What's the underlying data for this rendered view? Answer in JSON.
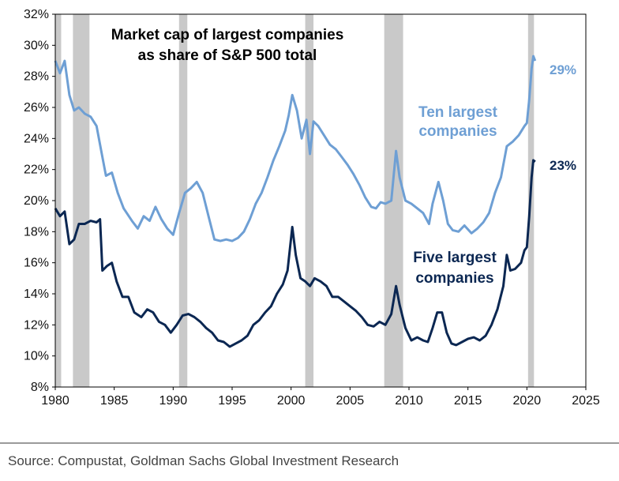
{
  "chart_data": {
    "type": "line",
    "title_lines": [
      "Market cap of largest companies",
      "as share of S&P 500 total"
    ],
    "xlim": [
      1980,
      2025
    ],
    "ylim": [
      8,
      32
    ],
    "x_ticks": [
      "1980",
      "1985",
      "1990",
      "1995",
      "2000",
      "2005",
      "2010",
      "2015",
      "2020",
      "2025"
    ],
    "y_ticks": [
      "8%",
      "10%",
      "12%",
      "14%",
      "16%",
      "18%",
      "20%",
      "22%",
      "24%",
      "26%",
      "28%",
      "30%",
      "32%"
    ],
    "recession_periods": [
      [
        1980.0,
        1980.5
      ],
      [
        1981.5,
        1982.9
      ],
      [
        1990.5,
        1991.2
      ],
      [
        2001.2,
        2001.9
      ],
      [
        2007.9,
        2009.5
      ],
      [
        2020.1,
        2020.6
      ]
    ],
    "series": [
      {
        "name": "Ten largest companies",
        "label_lines": [
          "Ten largest",
          "companies"
        ],
        "end_label": "29%",
        "color": "#6e9fd4",
        "points": [
          [
            1980.0,
            29.0
          ],
          [
            1980.4,
            28.2
          ],
          [
            1980.8,
            29.0
          ],
          [
            1981.2,
            26.8
          ],
          [
            1981.6,
            25.8
          ],
          [
            1982.0,
            26.0
          ],
          [
            1982.5,
            25.6
          ],
          [
            1983.0,
            25.4
          ],
          [
            1983.5,
            24.8
          ],
          [
            1984.0,
            22.8
          ],
          [
            1984.3,
            21.6
          ],
          [
            1984.8,
            21.8
          ],
          [
            1985.3,
            20.5
          ],
          [
            1985.8,
            19.5
          ],
          [
            1986.5,
            18.7
          ],
          [
            1987.0,
            18.2
          ],
          [
            1987.5,
            19.0
          ],
          [
            1988.0,
            18.7
          ],
          [
            1988.5,
            19.6
          ],
          [
            1989.0,
            18.8
          ],
          [
            1989.5,
            18.2
          ],
          [
            1990.0,
            17.8
          ],
          [
            1990.5,
            19.2
          ],
          [
            1991.0,
            20.5
          ],
          [
            1991.5,
            20.8
          ],
          [
            1992.0,
            21.2
          ],
          [
            1992.5,
            20.5
          ],
          [
            1993.0,
            19.0
          ],
          [
            1993.5,
            17.5
          ],
          [
            1994.0,
            17.4
          ],
          [
            1994.5,
            17.5
          ],
          [
            1995.0,
            17.4
          ],
          [
            1995.5,
            17.6
          ],
          [
            1996.0,
            18.0
          ],
          [
            1996.5,
            18.8
          ],
          [
            1997.0,
            19.8
          ],
          [
            1997.5,
            20.5
          ],
          [
            1998.0,
            21.5
          ],
          [
            1998.5,
            22.6
          ],
          [
            1999.0,
            23.5
          ],
          [
            1999.5,
            24.5
          ],
          [
            1999.8,
            25.5
          ],
          [
            2000.1,
            26.8
          ],
          [
            2000.5,
            25.8
          ],
          [
            2000.9,
            24.0
          ],
          [
            2001.3,
            25.2
          ],
          [
            2001.6,
            23.0
          ],
          [
            2001.9,
            25.1
          ],
          [
            2002.3,
            24.8
          ],
          [
            2002.8,
            24.2
          ],
          [
            2003.3,
            23.6
          ],
          [
            2003.8,
            23.3
          ],
          [
            2004.3,
            22.8
          ],
          [
            2004.8,
            22.3
          ],
          [
            2005.3,
            21.7
          ],
          [
            2005.8,
            21.0
          ],
          [
            2006.3,
            20.2
          ],
          [
            2006.8,
            19.6
          ],
          [
            2007.2,
            19.5
          ],
          [
            2007.6,
            19.9
          ],
          [
            2008.0,
            19.8
          ],
          [
            2008.5,
            20.0
          ],
          [
            2008.9,
            23.2
          ],
          [
            2009.2,
            21.5
          ],
          [
            2009.7,
            20.0
          ],
          [
            2010.2,
            19.8
          ],
          [
            2010.7,
            19.5
          ],
          [
            2011.2,
            19.2
          ],
          [
            2011.7,
            18.5
          ],
          [
            2012.0,
            19.8
          ],
          [
            2012.5,
            21.2
          ],
          [
            2012.9,
            20.0
          ],
          [
            2013.3,
            18.5
          ],
          [
            2013.7,
            18.1
          ],
          [
            2014.2,
            18.0
          ],
          [
            2014.7,
            18.4
          ],
          [
            2015.3,
            17.9
          ],
          [
            2015.8,
            18.2
          ],
          [
            2016.3,
            18.6
          ],
          [
            2016.8,
            19.2
          ],
          [
            2017.3,
            20.5
          ],
          [
            2017.8,
            21.5
          ],
          [
            2018.3,
            23.5
          ],
          [
            2018.8,
            23.8
          ],
          [
            2019.3,
            24.2
          ],
          [
            2019.8,
            24.8
          ],
          [
            2020.0,
            25.0
          ],
          [
            2020.2,
            26.5
          ],
          [
            2020.4,
            28.5
          ],
          [
            2020.55,
            29.3
          ],
          [
            2020.7,
            29.0
          ]
        ]
      },
      {
        "name": "Five largest companies",
        "label_lines": [
          "Five largest",
          "companies"
        ],
        "end_label": "23%",
        "color": "#0b2752",
        "points": [
          [
            1980.0,
            19.5
          ],
          [
            1980.4,
            19.0
          ],
          [
            1980.8,
            19.3
          ],
          [
            1981.2,
            17.2
          ],
          [
            1981.6,
            17.5
          ],
          [
            1982.0,
            18.5
          ],
          [
            1982.5,
            18.5
          ],
          [
            1983.0,
            18.7
          ],
          [
            1983.5,
            18.6
          ],
          [
            1983.8,
            18.8
          ],
          [
            1984.0,
            15.5
          ],
          [
            1984.4,
            15.8
          ],
          [
            1984.8,
            16.0
          ],
          [
            1985.2,
            14.8
          ],
          [
            1985.7,
            13.8
          ],
          [
            1986.2,
            13.8
          ],
          [
            1986.7,
            12.8
          ],
          [
            1987.3,
            12.5
          ],
          [
            1987.8,
            13.0
          ],
          [
            1988.3,
            12.8
          ],
          [
            1988.8,
            12.2
          ],
          [
            1989.3,
            12.0
          ],
          [
            1989.8,
            11.5
          ],
          [
            1990.3,
            12.0
          ],
          [
            1990.8,
            12.6
          ],
          [
            1991.3,
            12.7
          ],
          [
            1991.8,
            12.5
          ],
          [
            1992.3,
            12.2
          ],
          [
            1992.8,
            11.8
          ],
          [
            1993.3,
            11.5
          ],
          [
            1993.8,
            11.0
          ],
          [
            1994.3,
            10.9
          ],
          [
            1994.8,
            10.6
          ],
          [
            1995.3,
            10.8
          ],
          [
            1995.8,
            11.0
          ],
          [
            1996.3,
            11.3
          ],
          [
            1996.8,
            12.0
          ],
          [
            1997.3,
            12.3
          ],
          [
            1997.8,
            12.8
          ],
          [
            1998.3,
            13.2
          ],
          [
            1998.8,
            14.0
          ],
          [
            1999.3,
            14.6
          ],
          [
            1999.7,
            15.5
          ],
          [
            2000.1,
            18.3
          ],
          [
            2000.4,
            16.5
          ],
          [
            2000.8,
            15.0
          ],
          [
            2001.2,
            14.8
          ],
          [
            2001.6,
            14.5
          ],
          [
            2002.0,
            15.0
          ],
          [
            2002.5,
            14.8
          ],
          [
            2003.0,
            14.5
          ],
          [
            2003.5,
            13.8
          ],
          [
            2004.0,
            13.8
          ],
          [
            2004.5,
            13.5
          ],
          [
            2005.0,
            13.2
          ],
          [
            2005.5,
            12.9
          ],
          [
            2006.0,
            12.5
          ],
          [
            2006.5,
            12.0
          ],
          [
            2007.0,
            11.9
          ],
          [
            2007.5,
            12.2
          ],
          [
            2008.0,
            12.0
          ],
          [
            2008.5,
            12.7
          ],
          [
            2008.9,
            14.5
          ],
          [
            2009.2,
            13.3
          ],
          [
            2009.7,
            11.8
          ],
          [
            2010.2,
            11.0
          ],
          [
            2010.7,
            11.2
          ],
          [
            2011.2,
            11.0
          ],
          [
            2011.6,
            10.9
          ],
          [
            2012.0,
            11.8
          ],
          [
            2012.4,
            12.8
          ],
          [
            2012.8,
            12.8
          ],
          [
            2013.2,
            11.5
          ],
          [
            2013.6,
            10.8
          ],
          [
            2014.0,
            10.7
          ],
          [
            2014.5,
            10.9
          ],
          [
            2015.0,
            11.1
          ],
          [
            2015.5,
            11.2
          ],
          [
            2016.0,
            11.0
          ],
          [
            2016.5,
            11.3
          ],
          [
            2017.0,
            12.0
          ],
          [
            2017.5,
            13.0
          ],
          [
            2018.0,
            14.5
          ],
          [
            2018.3,
            16.5
          ],
          [
            2018.6,
            15.5
          ],
          [
            2019.0,
            15.6
          ],
          [
            2019.5,
            16.0
          ],
          [
            2019.8,
            16.8
          ],
          [
            2020.0,
            17.0
          ],
          [
            2020.2,
            19.0
          ],
          [
            2020.4,
            21.5
          ],
          [
            2020.55,
            22.6
          ],
          [
            2020.7,
            22.5
          ]
        ]
      }
    ]
  },
  "source": "Source: Compustat, Goldman Sachs Global Investment Research"
}
